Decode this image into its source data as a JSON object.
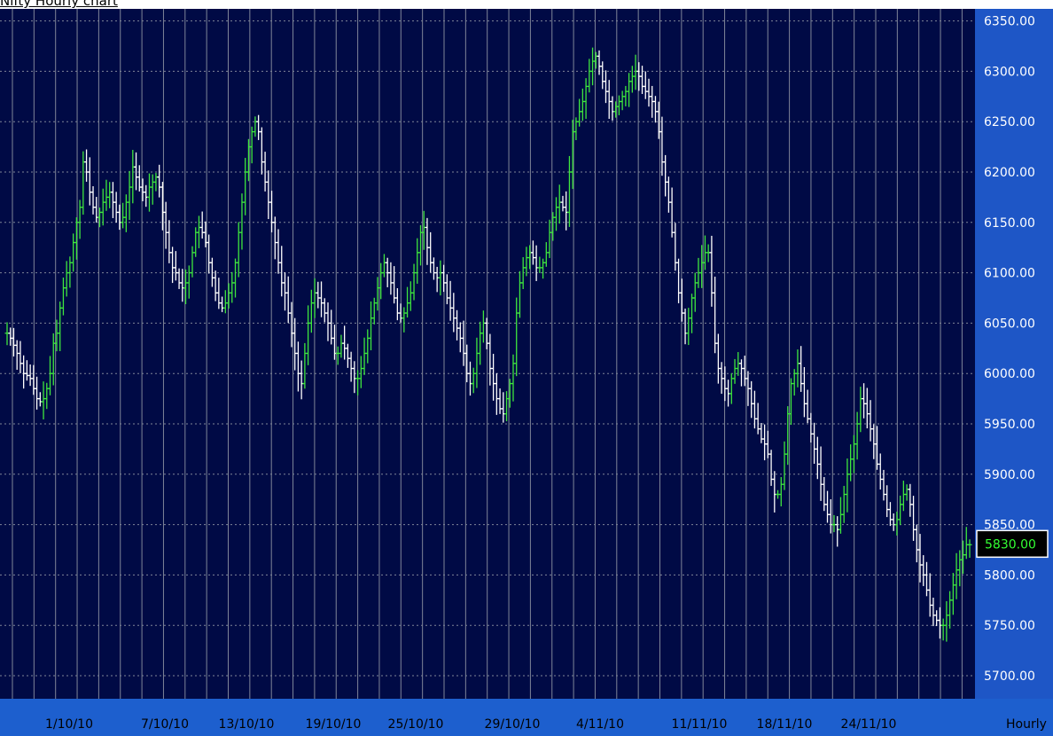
{
  "title": "Nifty Hourly chart",
  "colors": {
    "plot_bg": "#000a45",
    "axis_bg": "#1e56c6",
    "bottom_bg": "#1d5fce",
    "grid": "#7f8598",
    "up": "#3ee63e",
    "down": "#ffffff",
    "current_border": "#ffffff",
    "current_text": "#33ff33",
    "current_bg": "#000000"
  },
  "chart_data": {
    "type": "line",
    "title": "Nifty Hourly chart",
    "interval_label": "Hourly",
    "xlabel": "",
    "ylabel": "",
    "ylim": [
      5680,
      6360
    ],
    "y_ticks": [
      "5700.00",
      "5750.00",
      "5800.00",
      "5850.00",
      "5900.00",
      "5950.00",
      "6000.00",
      "6050.00",
      "6100.00",
      "6150.00",
      "6200.00",
      "6250.00",
      "6300.00",
      "6350.00"
    ],
    "x_tick_labels": [
      "1/10/10",
      "7/10/10",
      "13/10/10",
      "19/10/10",
      "25/10/10",
      "29/10/10",
      "4/11/10",
      "11/11/10",
      "18/11/10",
      "24/11/10"
    ],
    "grid": true,
    "current_value": "5830.00",
    "series": [
      {
        "values": [
          6040,
          6035,
          6028,
          6020,
          6010,
          6000,
          5998,
          5995,
          5985,
          5975,
          5972,
          5975,
          5985,
          6000,
          6030,
          6040,
          6065,
          6085,
          6100,
          6110,
          6130,
          6150,
          6165,
          6210,
          6200,
          6180,
          6165,
          6155,
          6160,
          6170,
          6175,
          6180,
          6170,
          6160,
          6150,
          6155,
          6170,
          6185,
          6205,
          6195,
          6185,
          6180,
          6175,
          6185,
          6190,
          6195,
          6185,
          6160,
          6140,
          6120,
          6105,
          6100,
          6090,
          6085,
          6090,
          6100,
          6120,
          6140,
          6145,
          6140,
          6130,
          6110,
          6095,
          6080,
          6070,
          6065,
          6070,
          6080,
          6090,
          6110,
          6140,
          6170,
          6200,
          6225,
          6240,
          6250,
          6240,
          6210,
          6190,
          6170,
          6150,
          6130,
          6110,
          6090,
          6080,
          6060,
          6040,
          6020,
          6000,
          5990,
          6020,
          6050,
          6070,
          6080,
          6075,
          6070,
          6060,
          6050,
          6035,
          6020,
          6020,
          6030,
          6025,
          6015,
          6005,
          5995,
          5995,
          6005,
          6020,
          6035,
          6055,
          6070,
          6085,
          6100,
          6110,
          6100,
          6090,
          6075,
          6060,
          6055,
          6060,
          6070,
          6080,
          6100,
          6120,
          6140,
          6145,
          6125,
          6110,
          6100,
          6095,
          6100,
          6090,
          6075,
          6065,
          6055,
          6045,
          6035,
          6020,
          6000,
          5990,
          6000,
          6020,
          6040,
          6050,
          6030,
          6005,
          5990,
          5975,
          5965,
          5960,
          5975,
          5990,
          6010,
          6060,
          6090,
          6105,
          6115,
          6120,
          6115,
          6105,
          6105,
          6110,
          6120,
          6140,
          6155,
          6165,
          6170,
          6165,
          6160,
          6200,
          6240,
          6250,
          6260,
          6270,
          6285,
          6300,
          6310,
          6315,
          6305,
          6290,
          6280,
          6270,
          6260,
          6265,
          6270,
          6275,
          6280,
          6290,
          6295,
          6300,
          6295,
          6285,
          6280,
          6275,
          6270,
          6260,
          6240,
          6210,
          6190,
          6170,
          6140,
          6110,
          6080,
          6060,
          6040,
          6055,
          6075,
          6090,
          6100,
          6110,
          6120,
          6120,
          6080,
          6030,
          6005,
          5995,
          5985,
          5980,
          5995,
          6005,
          6010,
          6005,
          5995,
          5985,
          5970,
          5955,
          5945,
          5935,
          5930,
          5920,
          5895,
          5880,
          5880,
          5890,
          5920,
          5960,
          5990,
          6000,
          6010,
          5990,
          5970,
          5955,
          5940,
          5925,
          5910,
          5890,
          5870,
          5860,
          5850,
          5850,
          5845,
          5860,
          5880,
          5900,
          5915,
          5930,
          5950,
          5975,
          5970,
          5960,
          5945,
          5930,
          5910,
          5895,
          5880,
          5865,
          5855,
          5850,
          5855,
          5870,
          5880,
          5885,
          5870,
          5845,
          5825,
          5810,
          5800,
          5785,
          5770,
          5760,
          5755,
          5750,
          5750,
          5760,
          5775,
          5790,
          5805,
          5815,
          5820,
          5830,
          5830
        ]
      }
    ]
  }
}
